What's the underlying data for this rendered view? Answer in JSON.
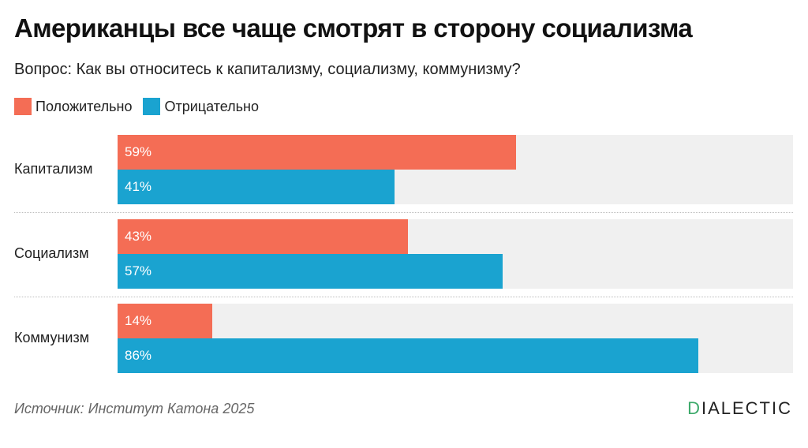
{
  "header": {
    "title": "Американцы все чаще смотрят в сторону социализма",
    "subtitle": "Вопрос: Как вы относитесь к капитализму, социализму, коммунизму?"
  },
  "legend": {
    "positive": "Положительно",
    "negative": "Отрицательно"
  },
  "colors": {
    "positive": "#f46d55",
    "negative": "#1aa3d0",
    "track": "#f0f0f0"
  },
  "footer": {
    "source": "Источник: Институт Катона 2025",
    "logo_first": "D",
    "logo_rest": "IALECTIC"
  },
  "chart_data": {
    "type": "bar",
    "orientation": "horizontal",
    "categories": [
      "Капитализм",
      "Социализм",
      "Коммунизм"
    ],
    "series": [
      {
        "name": "Положительно",
        "values": [
          59,
          43,
          14
        ],
        "labels": [
          "59%",
          "43%",
          "14%"
        ]
      },
      {
        "name": "Отрицательно",
        "values": [
          41,
          57,
          86
        ],
        "labels": [
          "41%",
          "57%",
          "86%"
        ]
      }
    ],
    "xlim": [
      0,
      100
    ],
    "grid": false,
    "legend": "top-left"
  }
}
